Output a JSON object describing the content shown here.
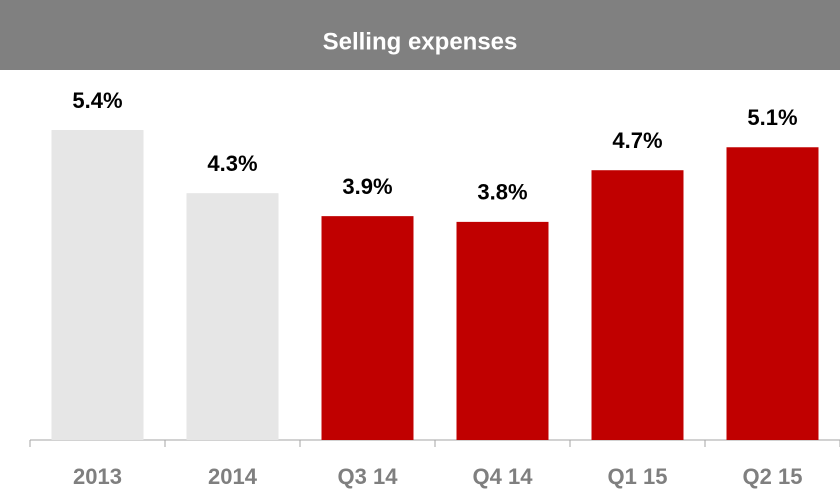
{
  "chart_data": {
    "type": "bar",
    "title": "Selling expenses",
    "categories": [
      "2013",
      "2014",
      "Q3 14",
      "Q4 14",
      "Q1 15",
      "Q2 15"
    ],
    "values": [
      5.4,
      4.3,
      3.9,
      3.8,
      4.7,
      5.1
    ],
    "value_labels": [
      "5.4%",
      "4.3%",
      "3.9%",
      "3.8%",
      "4.7%",
      "5.1%"
    ],
    "colors": [
      "#e6e6e6",
      "#e6e6e6",
      "#c00000",
      "#c00000",
      "#c00000",
      "#c00000"
    ]
  }
}
